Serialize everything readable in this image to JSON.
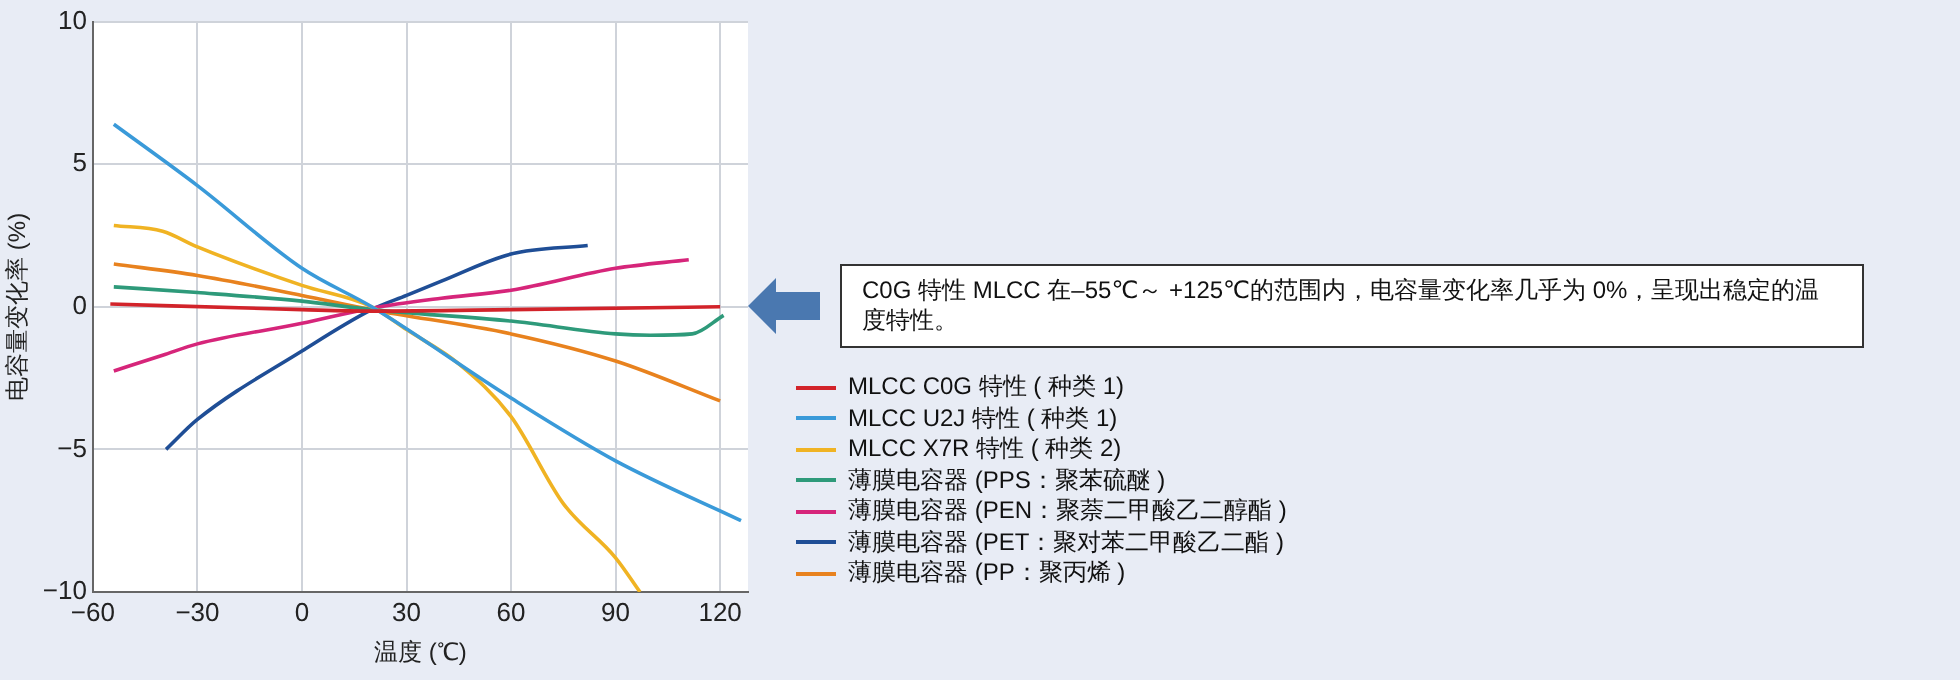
{
  "chart_data": {
    "type": "line",
    "xlabel": "温度 (℃)",
    "ylabel": "电容量变化率 (%)",
    "xlim": [
      -60,
      128
    ],
    "xticks": [
      {
        "value": -60,
        "label": "−60"
      },
      {
        "value": -30,
        "label": "−30"
      },
      0,
      30,
      60,
      90,
      120
    ],
    "ylim": [
      -10,
      10
    ],
    "yticks": [
      {
        "value": -10,
        "label": "−10"
      },
      {
        "value": -5,
        "label": "−5"
      },
      0,
      5,
      10
    ],
    "grid": true,
    "legend": "right",
    "marker": "none",
    "line_style": "solid",
    "annotations": [
      "C0G 特性 MLCC 在–55℃～ +125℃的范围内，电容量变化率几乎为 0%，呈现出稳定的温度特性。"
    ],
    "series": [
      {
        "name": "MLCC C0G 特性 ( 种类 1)",
        "color": "#d2232a",
        "x": [
          -55,
          0,
          20,
          60,
          120
        ],
        "values": [
          0.1,
          -0.1,
          -0.15,
          -0.1,
          0
        ]
      },
      {
        "name": "MLCC U2J 特性 ( 种类 1)",
        "color": "#3a9ad9",
        "x": [
          -54,
          -30,
          0,
          20,
          60,
          90,
          126
        ],
        "values": [
          6.4,
          4.25,
          1.35,
          0,
          -3.2,
          -5.4,
          -7.5
        ]
      },
      {
        "name": "MLCC X7R 特性 ( 种类 2)",
        "color": "#f0b323",
        "x": [
          -54,
          -40,
          -30,
          0,
          20,
          30,
          45,
          60,
          75,
          90,
          97
        ],
        "values": [
          2.85,
          2.65,
          2.1,
          0.75,
          0,
          -0.8,
          -2,
          -3.85,
          -6.9,
          -8.8,
          -10
        ]
      },
      {
        "name": "薄膜电容器 (PPS：聚苯硫醚 )",
        "color": "#2e9a7a",
        "x": [
          -54,
          -30,
          0,
          20,
          60,
          90,
          100,
          112,
          121
        ],
        "values": [
          0.7,
          0.5,
          0.2,
          -0.1,
          -0.5,
          -0.95,
          -1,
          -0.95,
          -0.3
        ]
      },
      {
        "name": "薄膜电容器 (PEN：聚萘二甲酸乙二醇酯 )",
        "color": "#d6257a",
        "x": [
          -54,
          -40,
          -30,
          0,
          20,
          40,
          60,
          90,
          111
        ],
        "values": [
          -2.25,
          -1.7,
          -1.3,
          -0.58,
          -0.05,
          0.3,
          0.58,
          1.35,
          1.65
        ]
      },
      {
        "name": "薄膜电容器 (PET：聚对苯二甲酸乙二酯 )",
        "color": "#1f4e96",
        "x": [
          -39,
          -30,
          0,
          20,
          30,
          40,
          60,
          82
        ],
        "values": [
          -5,
          -3.95,
          -1.55,
          -0.1,
          0.4,
          0.9,
          1.85,
          2.15
        ]
      },
      {
        "name": "薄膜电容器 (PP：聚丙烯 )",
        "color": "#e8821e",
        "x": [
          -54,
          -30,
          0,
          20,
          60,
          90,
          120
        ],
        "values": [
          1.5,
          1.1,
          0.4,
          -0.1,
          -0.95,
          -1.9,
          -3.3
        ]
      }
    ]
  }
}
